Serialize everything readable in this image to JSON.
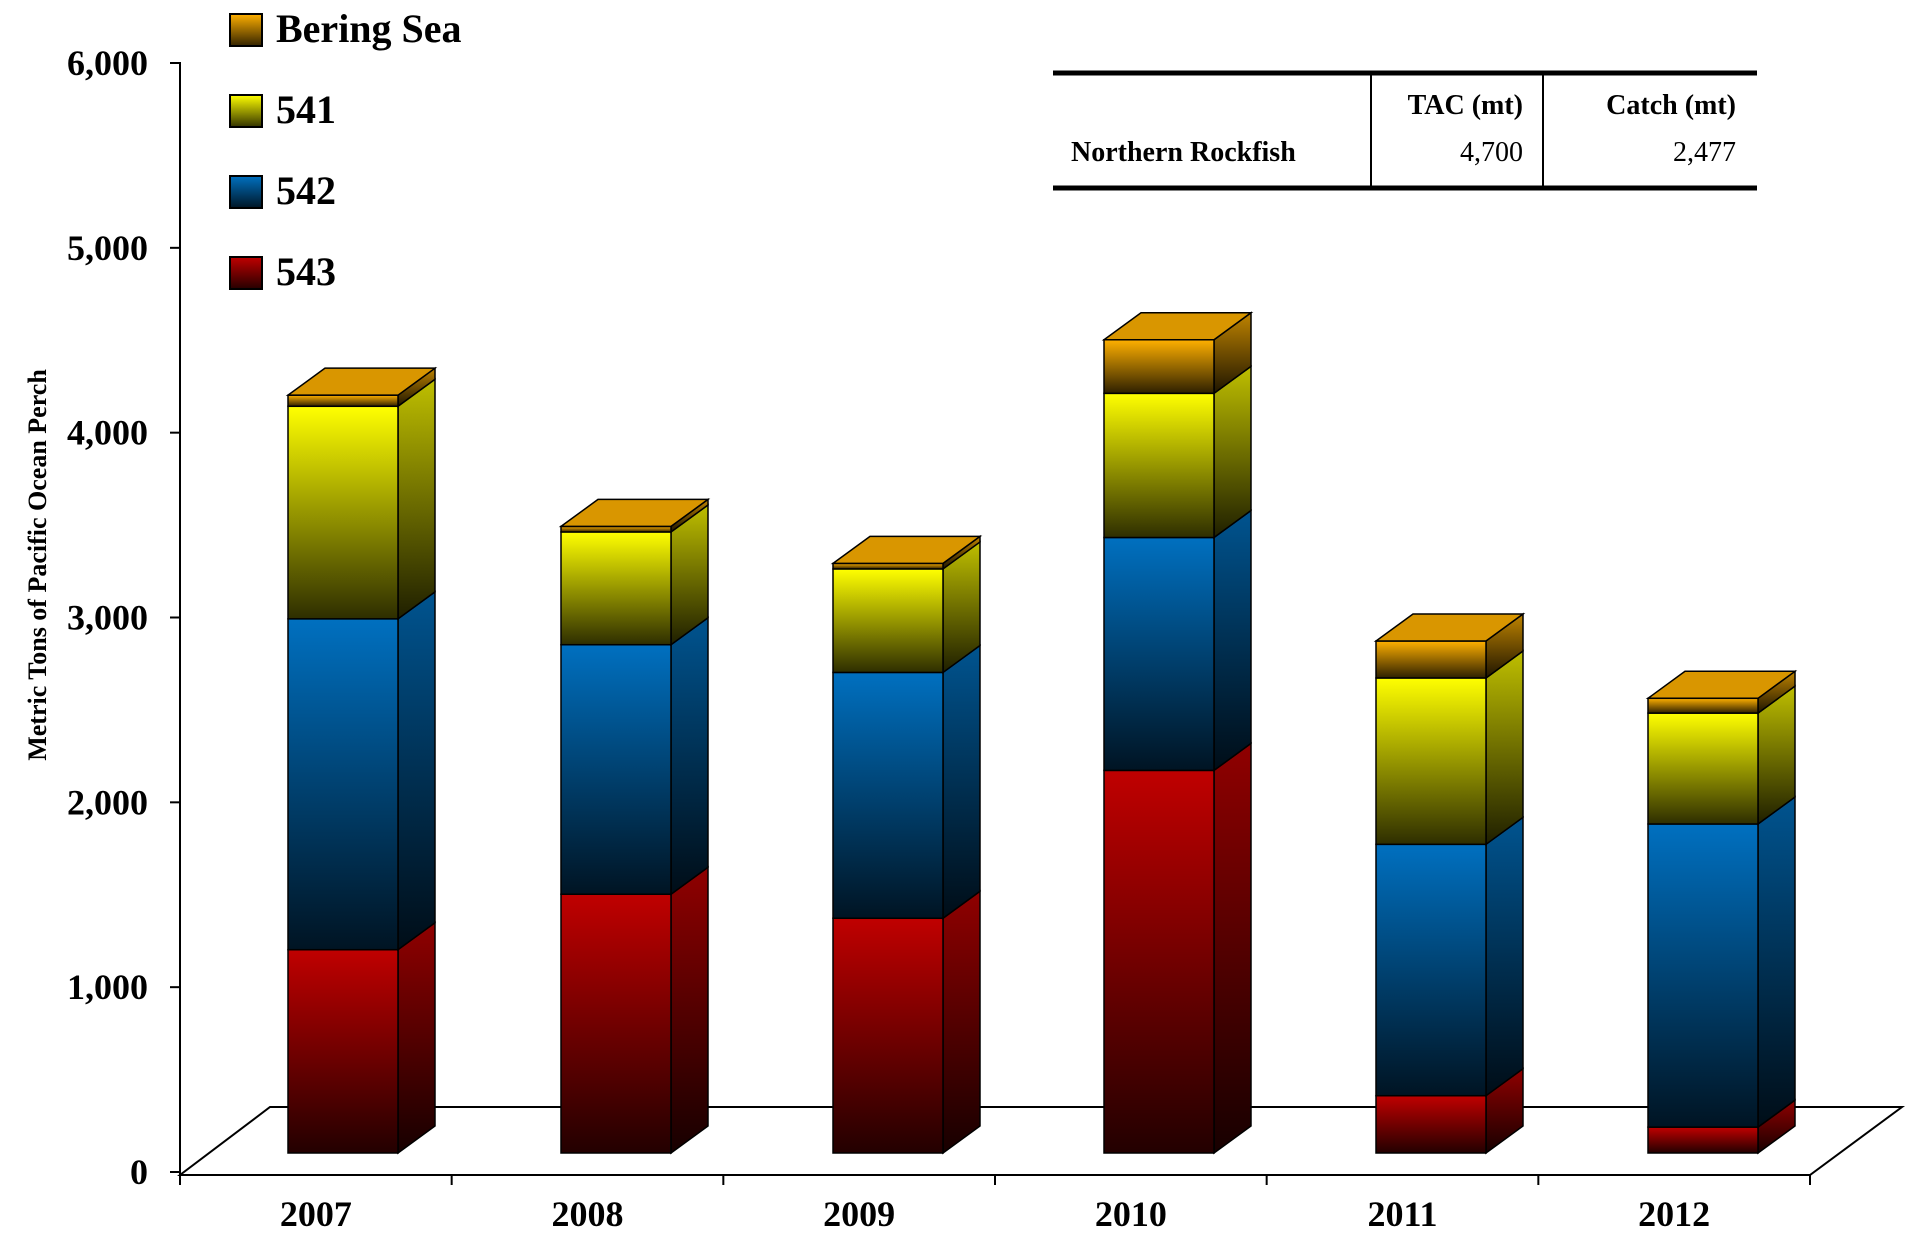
{
  "chart_data": {
    "type": "bar",
    "stacked": true,
    "three_d": true,
    "categories": [
      "2007",
      "2008",
      "2009",
      "2010",
      "2011",
      "2012"
    ],
    "series": [
      {
        "name": "543",
        "color": "#c00000",
        "values": [
          1100,
          1400,
          1270,
          2070,
          310,
          140
        ]
      },
      {
        "name": "542",
        "color": "#0070c0",
        "values": [
          1790,
          1350,
          1330,
          1260,
          1360,
          1640
        ]
      },
      {
        "name": "541",
        "color": "#ffff00",
        "values": [
          1150,
          610,
          560,
          780,
          900,
          600
        ]
      },
      {
        "name": "Bering Sea",
        "color": "#ffb000",
        "values": [
          60,
          30,
          30,
          290,
          200,
          80
        ]
      }
    ],
    "legend_order": [
      "Bering Sea",
      "541",
      "542",
      "543"
    ],
    "legend_position": "top-left",
    "ylabel": "Metric Tons of Pacific Ocean Perch",
    "xlabel": "",
    "ylim": [
      0,
      6000
    ],
    "yticks": [
      "0",
      "1,000",
      "2,000",
      "3,000",
      "4,000",
      "5,000",
      "6,000"
    ],
    "grid": false
  },
  "inset_table": {
    "headers": [
      "",
      "TAC (mt)",
      "Catch (mt)"
    ],
    "rows": [
      {
        "species": "Northern Rockfish",
        "tac": "4,700",
        "catch": "2,477"
      }
    ]
  }
}
